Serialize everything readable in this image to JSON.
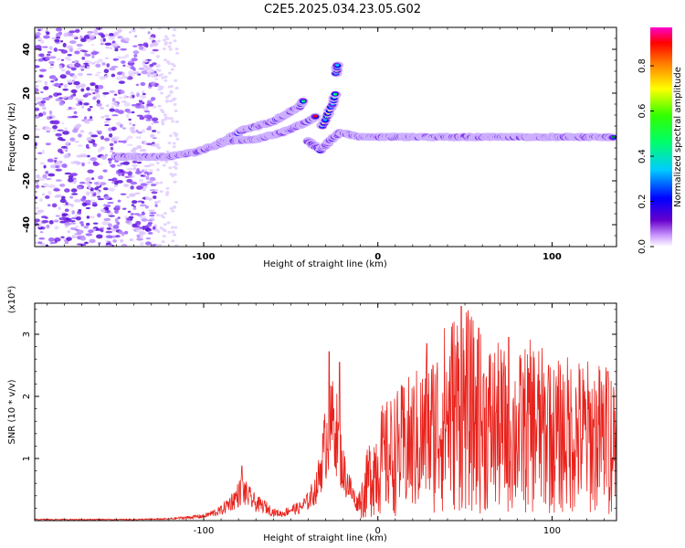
{
  "title": "C2E5.2025.034.23.05.G02",
  "colors": {
    "snr_line": "#e8221c",
    "frame": "#000000"
  },
  "chart_data": [
    {
      "type": "heatmap",
      "xlabel": "Height of straight line (km)",
      "ylabel": "Frequency (Hz)",
      "xlim": [
        -197,
        137
      ],
      "ylim": [
        -50,
        50
      ],
      "xticks": [
        -100,
        0,
        100
      ],
      "yticks": [
        -40,
        -20,
        0,
        20,
        40
      ],
      "colorbar": {
        "label": "Normalized spectral amplitude",
        "range": [
          0,
          0.97
        ],
        "ticks": [
          0.0,
          0.2,
          0.4,
          0.6,
          0.8
        ]
      },
      "ridges": [
        {
          "points": [
            [
              -150,
              -9
            ],
            [
              -120,
              -9
            ],
            [
              -105,
              -7
            ],
            [
              -90,
              -3
            ],
            [
              -78,
              3
            ],
            [
              -60,
              7
            ],
            [
              -45,
              14
            ],
            [
              -42,
              17
            ]
          ]
        },
        {
          "points": [
            [
              -90,
              -2
            ],
            [
              -70,
              -1
            ],
            [
              -55,
              2
            ],
            [
              -40,
              7
            ],
            [
              -35,
              10
            ]
          ]
        },
        {
          "points": [
            [
              -32,
              5
            ],
            [
              -26,
              15
            ],
            [
              -24,
              21
            ]
          ]
        },
        {
          "points": [
            [
              -24,
              29
            ],
            [
              -23,
              34
            ]
          ]
        },
        {
          "points": [
            [
              -40,
              -2
            ],
            [
              -33,
              -6
            ],
            [
              -28,
              -2
            ],
            [
              -22,
              2
            ],
            [
              -10,
              0
            ],
            [
              30,
              0
            ],
            [
              80,
              0
            ],
            [
              136,
              0
            ]
          ]
        }
      ]
    },
    {
      "type": "line",
      "xlabel": "Height of straight line (km)",
      "ylabel": "SNR (10 * v/v)",
      "y_scale_label": "(x10⁴)",
      "xlim": [
        -197,
        137
      ],
      "ylim": [
        0,
        3.5
      ],
      "xticks": [
        -100,
        0,
        100
      ],
      "yticks": [
        1,
        2,
        3
      ],
      "series": [
        {
          "envelope": [
            [
              -197,
              0.02
            ],
            [
              -140,
              0.02
            ],
            [
              -120,
              0.03
            ],
            [
              -100,
              0.08
            ],
            [
              -90,
              0.18
            ],
            [
              -82,
              0.4
            ],
            [
              -78,
              0.55
            ],
            [
              -75,
              0.45
            ],
            [
              -70,
              0.3
            ],
            [
              -65,
              0.25
            ],
            [
              -60,
              0.15
            ],
            [
              -55,
              0.12
            ],
            [
              -50,
              0.2
            ],
            [
              -45,
              0.22
            ],
            [
              -40,
              0.35
            ],
            [
              -35,
              0.6
            ],
            [
              -30,
              1.4
            ],
            [
              -25,
              1.8
            ],
            [
              -20,
              0.9
            ],
            [
              -15,
              0.5
            ],
            [
              -12,
              0.3
            ],
            [
              -8,
              0.55
            ],
            [
              -5,
              0.9
            ],
            [
              0,
              1.2
            ],
            [
              10,
              1.4
            ],
            [
              20,
              1.6
            ],
            [
              30,
              1.8
            ],
            [
              40,
              2.2
            ],
            [
              48,
              2.4
            ],
            [
              60,
              2.0
            ],
            [
              70,
              1.9
            ],
            [
              80,
              1.8
            ],
            [
              90,
              2.0
            ],
            [
              100,
              1.7
            ],
            [
              110,
              1.8
            ],
            [
              120,
              1.75
            ],
            [
              130,
              1.7
            ],
            [
              137,
              1.7
            ]
          ],
          "peaks": [
            [
              -78,
              0.88
            ],
            [
              -28,
              2.72
            ],
            [
              -22,
              2.55
            ],
            [
              28,
              2.85
            ],
            [
              48,
              3.45
            ],
            [
              58,
              3.1
            ],
            [
              75,
              2.95
            ],
            [
              98,
              2.5
            ],
            [
              132,
              2.4
            ]
          ]
        }
      ]
    }
  ]
}
